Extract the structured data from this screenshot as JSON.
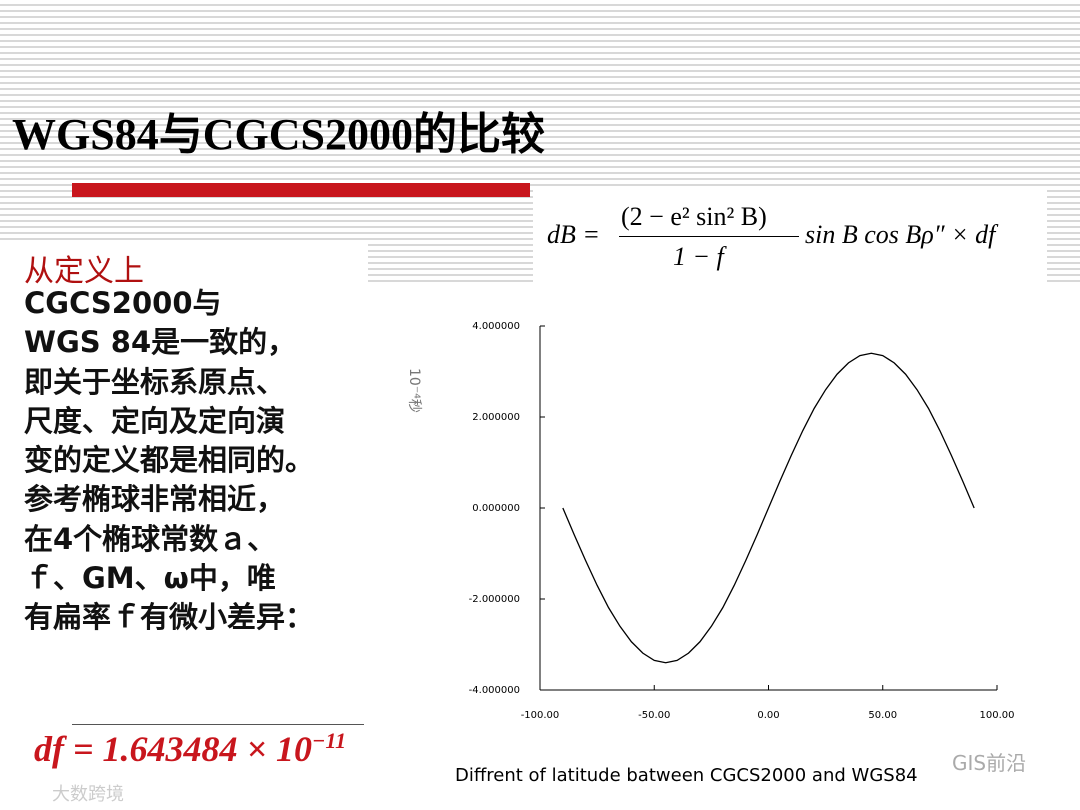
{
  "title": "WGS84与CGCS2000的比较",
  "heading": "从定义上",
  "body_lines": [
    "CGCS2000与",
    "WGS 84是一致的，",
    "即关于坐标系原点、",
    "尺度、定向及定向演",
    "变的定义都是相同的。",
    "参考椭球非常相近，",
    "在4个椭球常数ａ、",
    "ｆ、GM、ω中，唯",
    "有扁率ｆ有微小差异："
  ],
  "formula": {
    "lhs": "dB =",
    "numerator": "(2 − e² sin² B)",
    "denominator": "1 − f",
    "rest": "sin B cos Bρ″ × df"
  },
  "df": {
    "lhs": "df",
    "value": "= 1.643484 × 10",
    "exponent": "−11"
  },
  "watermarks": [
    "GIS前沿",
    "大数跨境"
  ],
  "chart_data": {
    "type": "line",
    "ylabel": "10⁻⁴秒",
    "xlabel": "Diffrent of latitude batween CGCS2000 and WGS84",
    "x": [
      -90,
      -85,
      -80,
      -75,
      -70,
      -65,
      -60,
      -55,
      -50,
      -45,
      -40,
      -35,
      -30,
      -25,
      -20,
      -15,
      -10,
      -5,
      0,
      5,
      10,
      15,
      20,
      25,
      30,
      35,
      40,
      45,
      50,
      55,
      60,
      65,
      70,
      75,
      80,
      85,
      90
    ],
    "series": [
      {
        "color": "#000000",
        "values": [
          0,
          -0.59,
          -1.16,
          -1.7,
          -2.19,
          -2.6,
          -2.94,
          -3.19,
          -3.35,
          -3.4,
          -3.35,
          -3.19,
          -2.94,
          -2.6,
          -2.19,
          -1.7,
          -1.16,
          -0.59,
          0,
          0.59,
          1.16,
          1.7,
          2.19,
          2.6,
          2.94,
          3.19,
          3.35,
          3.4,
          3.35,
          3.19,
          2.94,
          2.6,
          2.19,
          1.7,
          1.16,
          0.59,
          0
        ]
      }
    ],
    "xlim": [
      -100,
      100
    ],
    "ylim": [
      -4,
      4
    ],
    "xticks": [
      {
        "value": -100,
        "label": "-100.00"
      },
      {
        "value": -50,
        "label": "-50.00"
      },
      {
        "value": 0,
        "label": "0.00"
      },
      {
        "value": 50,
        "label": "50.00"
      },
      {
        "value": 100,
        "label": "100.00"
      }
    ],
    "yticks": [
      {
        "value": -4,
        "label": "-4.000000"
      },
      {
        "value": -2,
        "label": "-2.000000"
      },
      {
        "value": 0,
        "label": "0.000000"
      },
      {
        "value": 2,
        "label": "2.000000"
      },
      {
        "value": 4,
        "label": "4.000000"
      }
    ],
    "grid": false
  }
}
